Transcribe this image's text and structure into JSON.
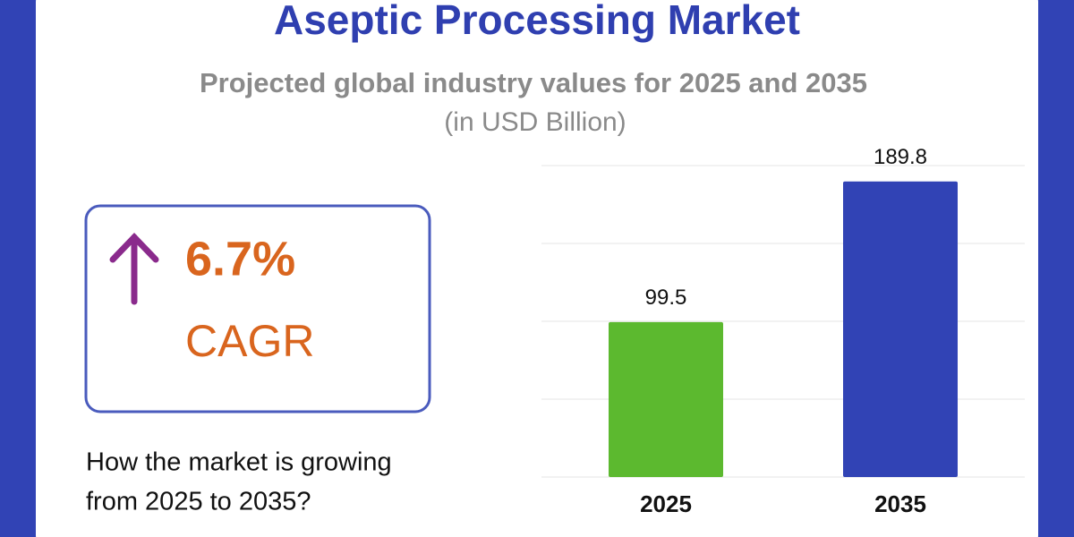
{
  "chart_data": {
    "type": "bar",
    "title": "Aseptic Processing Market",
    "subtitle": "Projected global industry values for 2025 and 2035",
    "unit_label": "(in USD Billion)",
    "categories": [
      "2025",
      "2035"
    ],
    "values": [
      99.5,
      189.8
    ],
    "colors": [
      "#5cb92f",
      "#3143b5"
    ],
    "ylim": [
      0,
      200
    ],
    "yticks": [
      0,
      50,
      100,
      150,
      200
    ],
    "grid": true
  },
  "highlight": {
    "growth": "6.7%",
    "label": "CAGR",
    "question": [
      "How the market is growing",
      "from 2025 to 2035?"
    ]
  }
}
